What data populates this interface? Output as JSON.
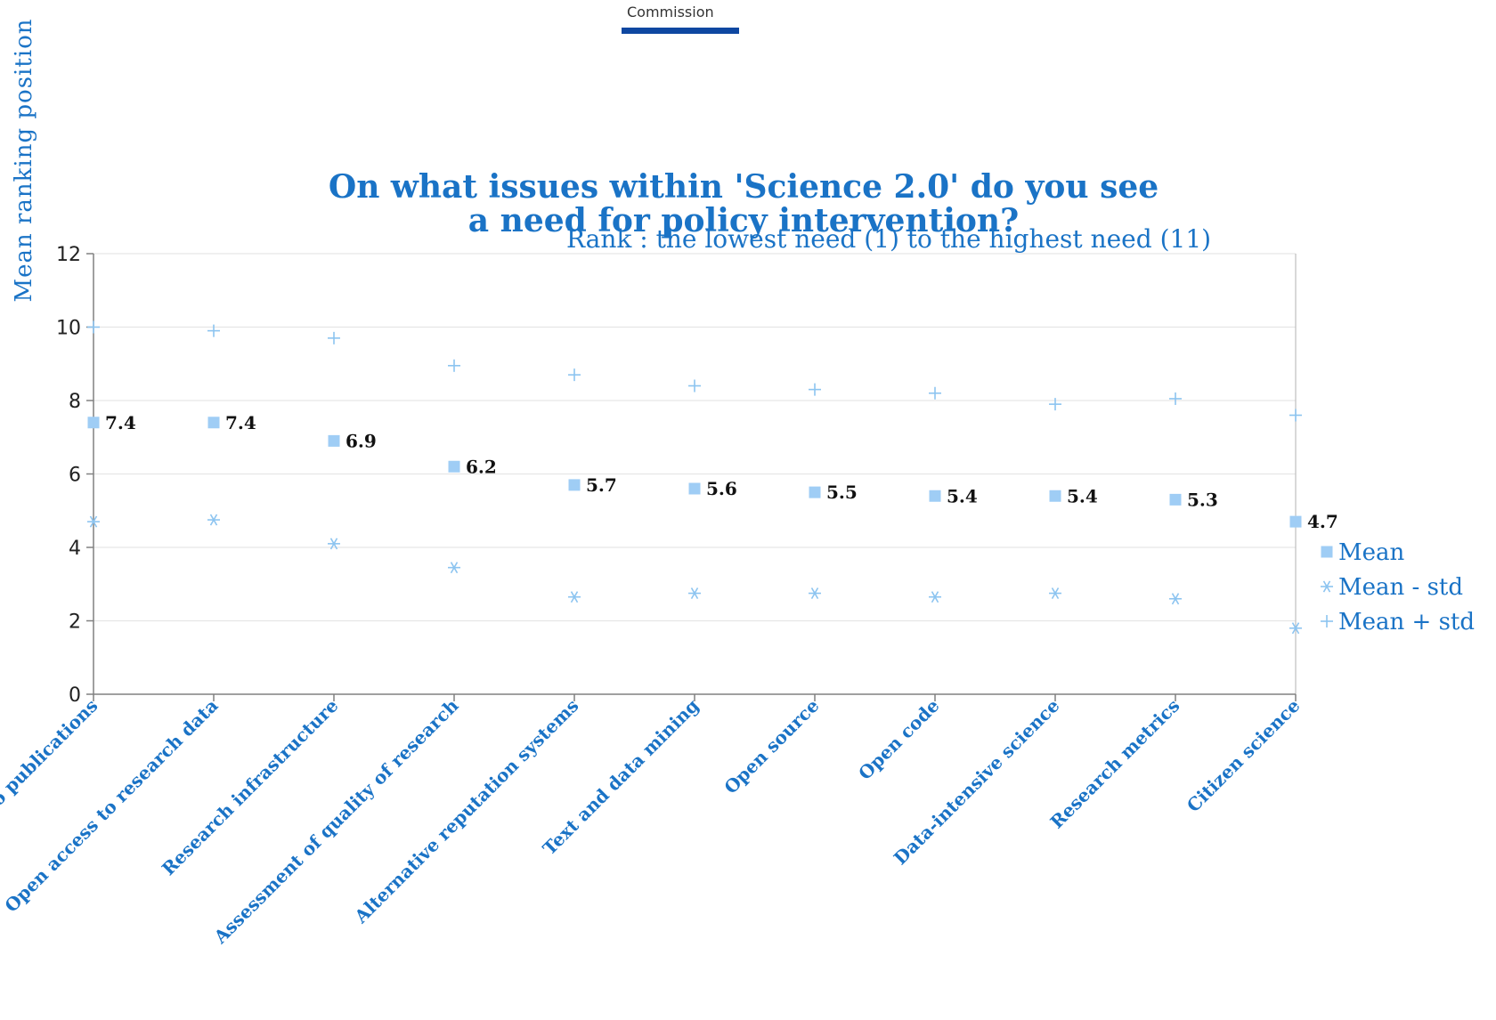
{
  "logo": {
    "text": "Commission"
  },
  "chart_data": {
    "type": "scatter",
    "title_line1": "On what issues within 'Science 2.0' do you see",
    "title_line2": "a need for policy intervention?",
    "subtitle": "Rank : the lowest need (1) to the highest need (11)",
    "ylabel": "Mean   ranking   position",
    "ylim": [
      0,
      12
    ],
    "yticks": [
      0,
      2,
      4,
      6,
      8,
      10,
      12
    ],
    "grid": true,
    "legend_position": "right",
    "categories": [
      "Open access to publications",
      "Open access to research  data",
      "Research  infrastructure",
      "Assessment  of quality  of research",
      "Alternative  reputation  systems",
      "Text and  data mining",
      "Open source",
      "Open code",
      "Data-intensive science",
      "Research metrics",
      "Citizen science"
    ],
    "series": [
      {
        "name": "Mean",
        "marker": "square",
        "color": "#9fcdf5",
        "values": [
          7.4,
          7.4,
          6.9,
          6.2,
          5.7,
          5.6,
          5.5,
          5.4,
          5.4,
          5.3,
          4.7
        ],
        "labels": [
          "7.4",
          "7.4",
          "6.9",
          "6.2",
          "5.7",
          "5.6",
          "5.5",
          "5.4",
          "5.4",
          "5.3",
          "4.7"
        ]
      },
      {
        "name": "Mean - std",
        "marker": "asterisk",
        "color": "#8cc4f0",
        "values": [
          4.7,
          4.75,
          4.1,
          3.45,
          2.65,
          2.75,
          2.75,
          2.65,
          2.75,
          2.6,
          1.8
        ]
      },
      {
        "name": "Mean + std",
        "marker": "plus",
        "color": "#8cc4f0",
        "values": [
          10.0,
          9.9,
          9.7,
          8.95,
          8.7,
          8.4,
          8.3,
          8.2,
          7.9,
          8.05,
          7.6
        ]
      }
    ]
  }
}
